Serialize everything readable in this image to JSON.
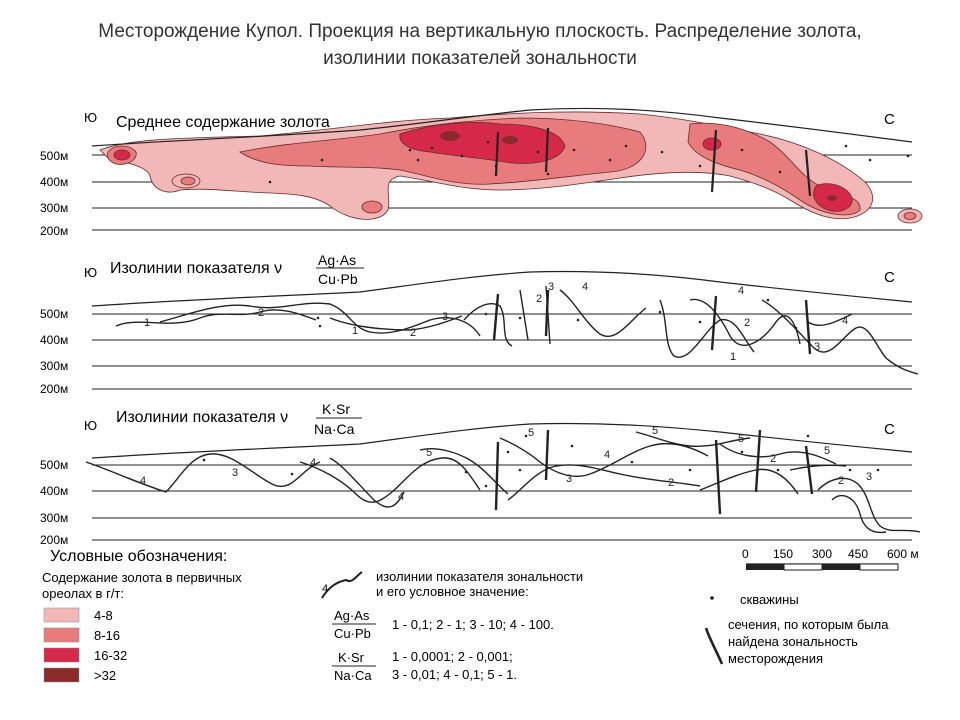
{
  "title": {
    "line1": "Месторождение Купол. Проекция на вертикальную плоскость. Распределение золота,",
    "line2": "изолинии показателей зональности"
  },
  "compass": {
    "south": "Ю",
    "north": "С"
  },
  "levels": [
    "500м",
    "400м",
    "300м",
    "200м"
  ],
  "panels": [
    {
      "title": "Среднее содержание золота"
    },
    {
      "title_prefix": "Изолинии показателя ν",
      "numerator": "Ag·As",
      "denominator": "Cu·Pb"
    },
    {
      "title_prefix": "Изолинии показателя ν",
      "numerator": "K·Sr",
      "denominator": "Na·Ca"
    }
  ],
  "isoline_labels": {
    "panel2": [
      "1",
      "2",
      "1",
      "2",
      "3",
      "2",
      "3",
      "4",
      "4",
      "2",
      "1",
      "4",
      "3"
    ],
    "panel3": [
      "4",
      "3",
      "4",
      "4",
      "5",
      "5",
      "5",
      "4",
      "3",
      "2",
      "5",
      "2",
      "5",
      "2",
      "3"
    ]
  },
  "legend": {
    "heading": "Условные обозначения:",
    "gold_caption_1": "Содержание золота в первичных",
    "gold_caption_2": "ореолах в г/т:",
    "gold_classes": [
      {
        "label": "4-8",
        "color": "#f2b8b8"
      },
      {
        "label": "8-16",
        "color": "#e87c7c"
      },
      {
        "label": "16-32",
        "color": "#d6294a"
      },
      {
        "label": ">32",
        "color": "#8a2a2a"
      }
    ],
    "isoline_caption_1": "изолинии показателя зональности",
    "isoline_caption_2": "и его условное значение:",
    "index1": {
      "numerator": "Ag·As",
      "denominator": "Cu·Pb",
      "values": "1 - 0,1; 2 - 1; 3 - 10; 4 - 100."
    },
    "index2": {
      "numerator": "K·Sr",
      "denominator": "Na·Ca",
      "values_1": "1 - 0,0001; 2 - 0,001;",
      "values_2": "3 - 0,01; 4 - 0,1; 5 - 1."
    },
    "wells": "скважины",
    "sections_1": "сечения, по которым была",
    "sections_2": "найдена зональность",
    "sections_3": "месторождения"
  },
  "scale": {
    "ticks": [
      "0",
      "150",
      "300",
      "450",
      "600 м"
    ]
  },
  "colors": {
    "grade_4_8": "#f2b8b8",
    "grade_8_16": "#e87c7c",
    "grade_16_32": "#d6294a",
    "grade_gt32": "#8a2a2a",
    "line": "#222222"
  }
}
